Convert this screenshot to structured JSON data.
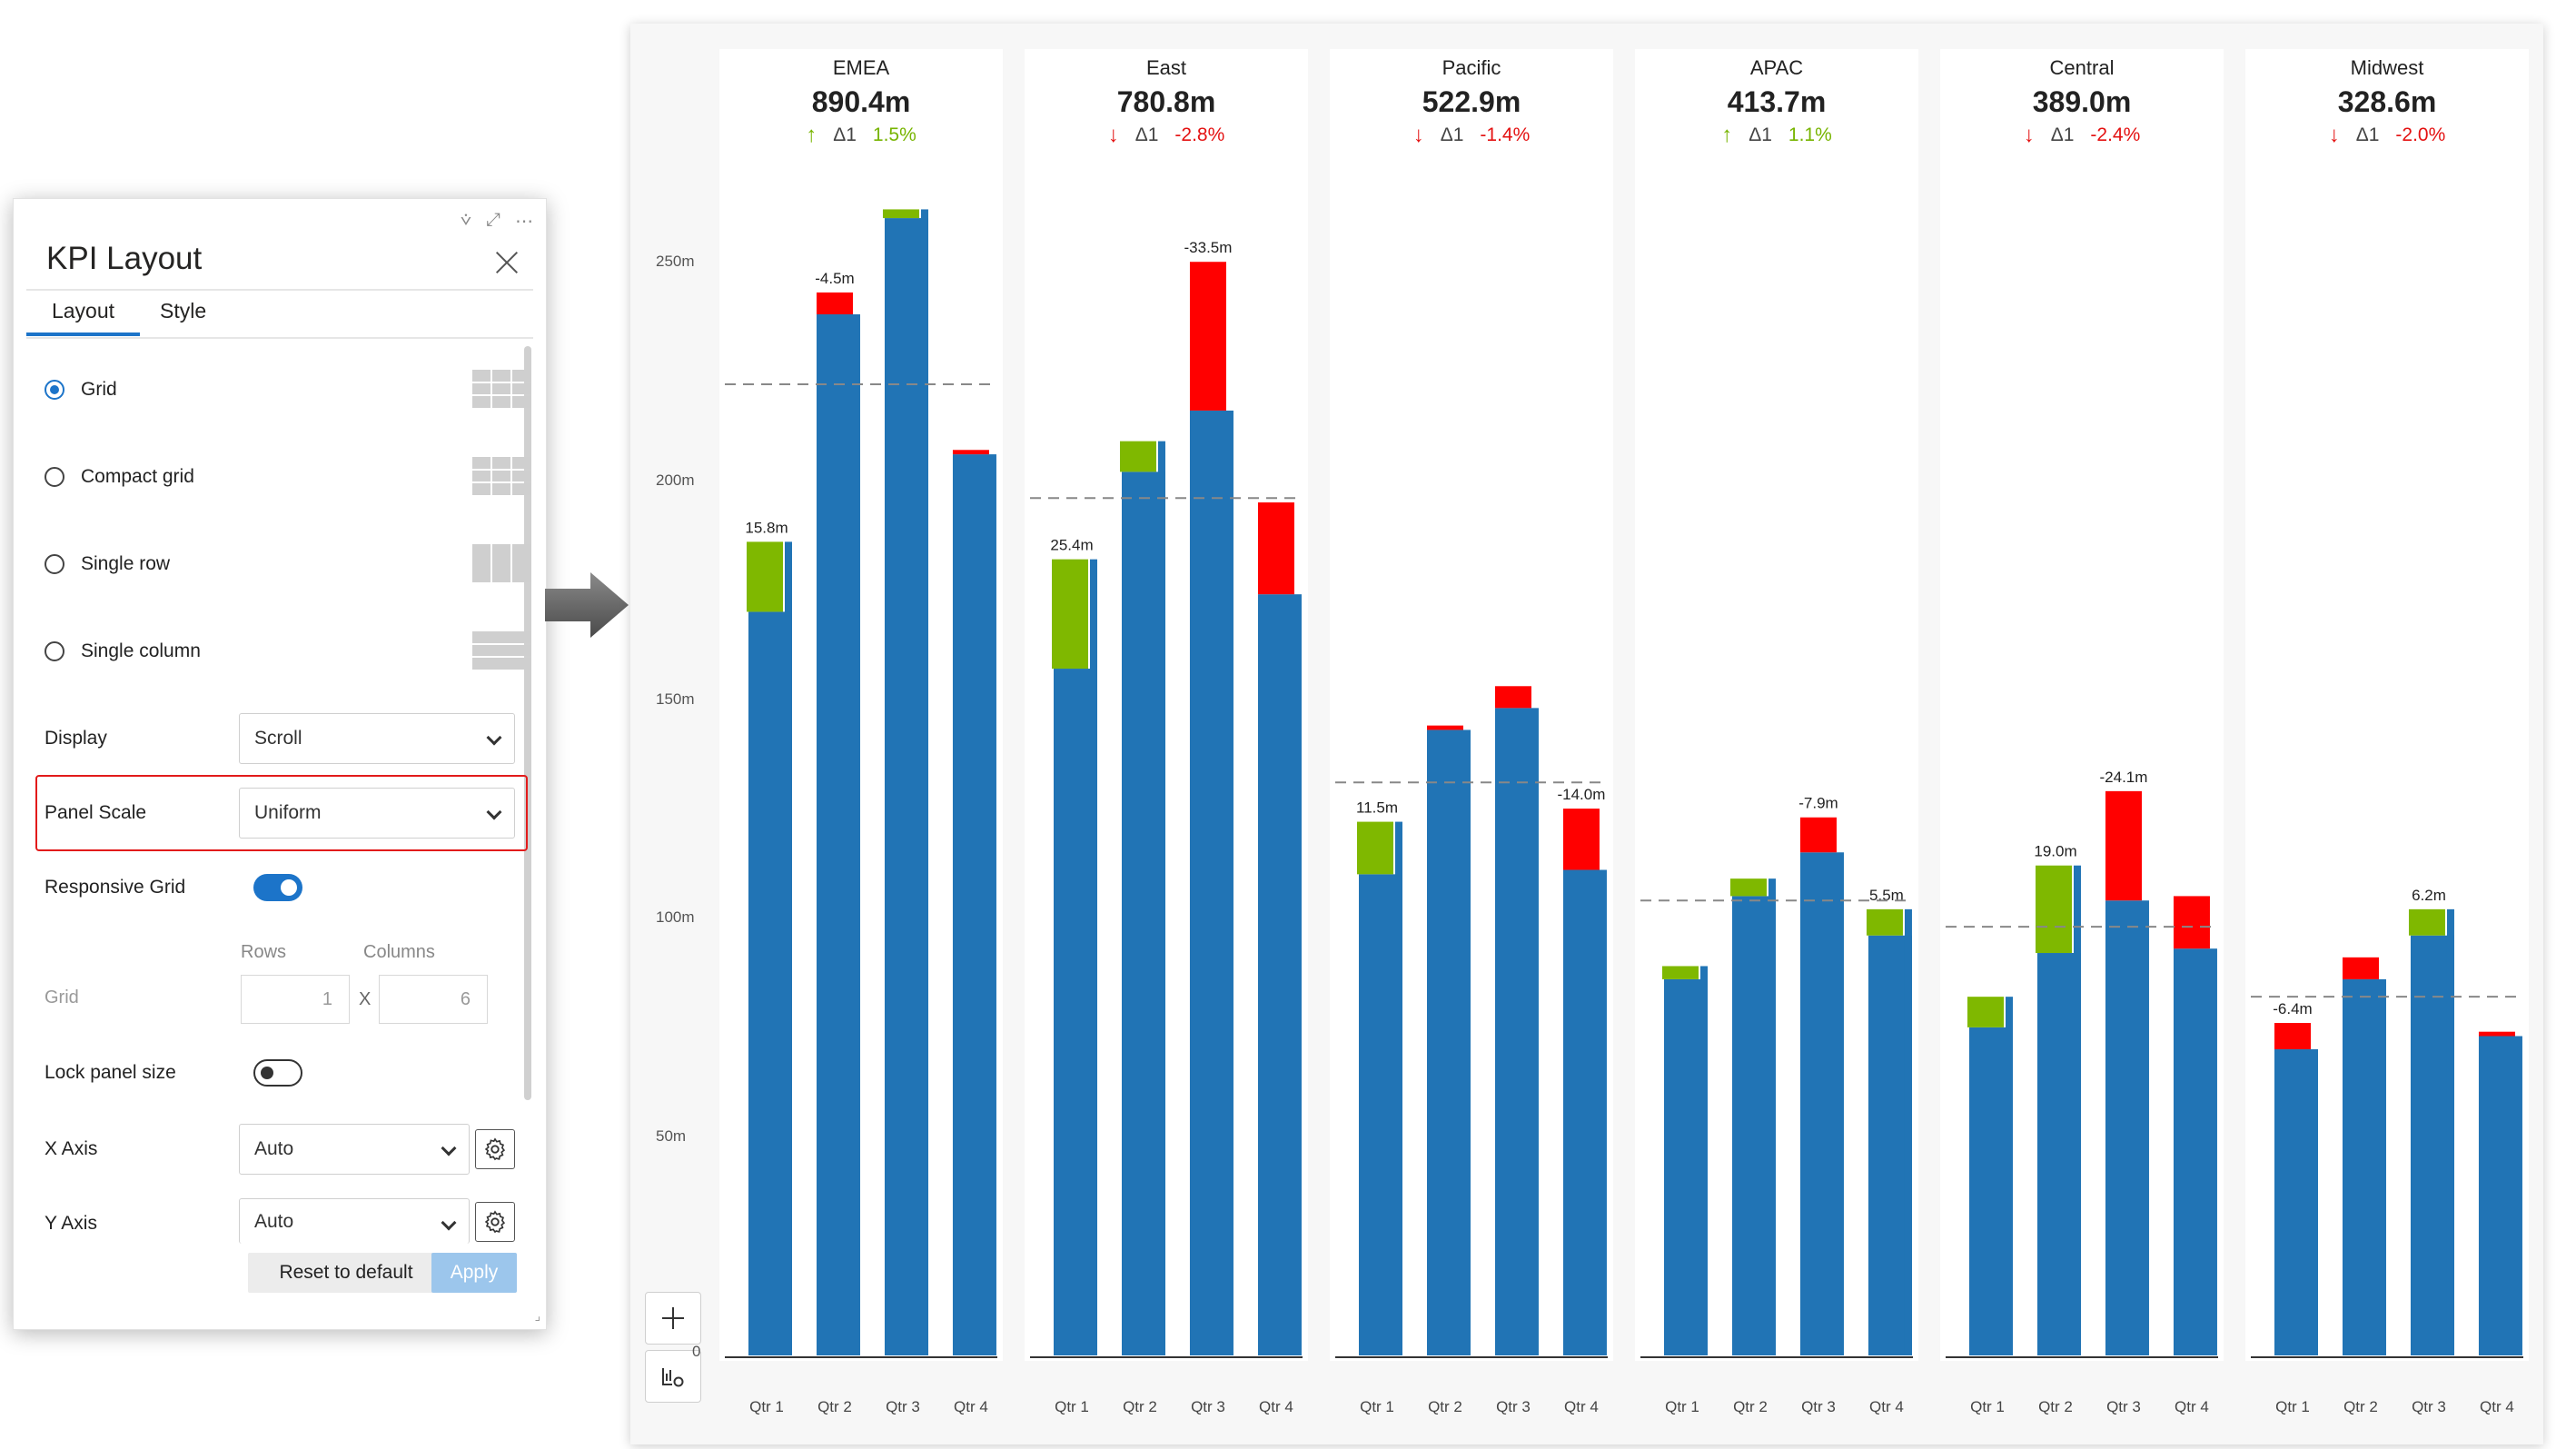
{
  "settings_panel": {
    "title": "KPI Layout",
    "tabs": [
      {
        "label": "Layout",
        "active": true
      },
      {
        "label": "Style",
        "active": false
      }
    ],
    "layout_options": [
      {
        "label": "Grid",
        "selected": true,
        "icon": "grid-layout-icon"
      },
      {
        "label": "Compact grid",
        "selected": false,
        "icon": "compact-grid-icon"
      },
      {
        "label": "Single row",
        "selected": false,
        "icon": "single-row-icon"
      },
      {
        "label": "Single column",
        "selected": false,
        "icon": "single-column-icon"
      }
    ],
    "display": {
      "label": "Display",
      "value": "Scroll"
    },
    "panel_scale": {
      "label": "Panel Scale",
      "value": "Uniform"
    },
    "responsive_grid": {
      "label": "Responsive Grid",
      "on": true
    },
    "grid": {
      "label": "Grid",
      "rows_label": "Rows",
      "columns_label": "Columns",
      "rows": "1",
      "columns": "6",
      "separator": "X"
    },
    "lock_panel_size": {
      "label": "Lock panel size",
      "on": false
    },
    "x_axis": {
      "label": "X Axis",
      "value": "Auto"
    },
    "y_axis": {
      "label": "Y Axis",
      "value": "Auto"
    },
    "reset_label": "Reset to default",
    "apply_label": "Apply"
  },
  "colors": {
    "bar": "#2174b5",
    "positive": "#7fb800",
    "negative": "#ff0000",
    "accent": "#1c74c9"
  },
  "dashboard": {
    "y_ticks": [
      "250m",
      "200m",
      "150m",
      "100m",
      "50m"
    ],
    "y_tick_values": [
      250,
      200,
      150,
      100,
      50
    ],
    "zero_label": "0"
  },
  "chart_data": [
    {
      "type": "bar",
      "title": "EMEA",
      "total": "890.4m",
      "delta_label": "Δ1",
      "delta": "1.5%",
      "direction": "up",
      "categories": [
        "Qtr 1",
        "Qtr 2",
        "Qtr 3",
        "Qtr 4"
      ],
      "values": [
        186,
        243,
        262,
        206
      ],
      "avg": 222,
      "variances": [
        {
          "bar": 0,
          "from": 170,
          "to": 186,
          "label": "15.8m"
        },
        {
          "bar": 1,
          "from": 238,
          "to": 243,
          "label": "-4.5m"
        },
        {
          "bar": 2,
          "from": 260,
          "to": 262,
          "label": ""
        },
        {
          "bar": 3,
          "from": 206,
          "to": 207,
          "label": ""
        }
      ],
      "ylim": [
        0,
        265
      ]
    },
    {
      "type": "bar",
      "title": "East",
      "total": "780.8m",
      "delta_label": "Δ1",
      "delta": "-2.8%",
      "direction": "down",
      "categories": [
        "Qtr 1",
        "Qtr 2",
        "Qtr 3",
        "Qtr 4"
      ],
      "values": [
        182,
        209,
        250,
        195
      ],
      "avg": 196,
      "variances": [
        {
          "bar": 0,
          "from": 157,
          "to": 182,
          "label": "25.4m"
        },
        {
          "bar": 1,
          "from": 202,
          "to": 209,
          "label": ""
        },
        {
          "bar": 2,
          "from": 216,
          "to": 250,
          "label": "-33.5m"
        },
        {
          "bar": 3,
          "from": 174,
          "to": 195,
          "label": ""
        }
      ],
      "ylim": [
        0,
        265
      ]
    },
    {
      "type": "bar",
      "title": "Pacific",
      "total": "522.9m",
      "delta_label": "Δ1",
      "delta": "-1.4%",
      "direction": "down",
      "categories": [
        "Qtr 1",
        "Qtr 2",
        "Qtr 3",
        "Qtr 4"
      ],
      "values": [
        122,
        144,
        153,
        125
      ],
      "avg": 131,
      "variances": [
        {
          "bar": 0,
          "from": 110,
          "to": 122,
          "label": "11.5m"
        },
        {
          "bar": 1,
          "from": 143,
          "to": 144,
          "label": ""
        },
        {
          "bar": 2,
          "from": 148,
          "to": 153,
          "label": ""
        },
        {
          "bar": 3,
          "from": 111,
          "to": 125,
          "label": "-14.0m"
        }
      ],
      "ylim": [
        0,
        265
      ]
    },
    {
      "type": "bar",
      "title": "APAC",
      "total": "413.7m",
      "delta_label": "Δ1",
      "delta": "1.1%",
      "direction": "up",
      "categories": [
        "Qtr 1",
        "Qtr 2",
        "Qtr 3",
        "Qtr 4"
      ],
      "values": [
        89,
        109,
        123,
        102
      ],
      "avg": 104,
      "variances": [
        {
          "bar": 0,
          "from": 89,
          "to": 86,
          "label": ""
        },
        {
          "bar": 1,
          "from": 105,
          "to": 109,
          "label": ""
        },
        {
          "bar": 2,
          "from": 115,
          "to": 123,
          "label": "-7.9m"
        },
        {
          "bar": 3,
          "from": 96,
          "to": 102,
          "label": "5.5m"
        }
      ],
      "ylim": [
        0,
        265
      ]
    },
    {
      "type": "bar",
      "title": "Central",
      "total": "389.0m",
      "delta_label": "Δ1",
      "delta": "-2.4%",
      "direction": "down",
      "categories": [
        "Qtr 1",
        "Qtr 2",
        "Qtr 3",
        "Qtr 4"
      ],
      "values": [
        82,
        112,
        129,
        105
      ],
      "avg": 98,
      "variances": [
        {
          "bar": 0,
          "from": 75,
          "to": 82,
          "label": ""
        },
        {
          "bar": 1,
          "from": 92,
          "to": 112,
          "label": "19.0m"
        },
        {
          "bar": 2,
          "from": 104,
          "to": 129,
          "label": "-24.1m"
        },
        {
          "bar": 3,
          "from": 93,
          "to": 105,
          "label": ""
        }
      ],
      "ylim": [
        0,
        265
      ]
    },
    {
      "type": "bar",
      "title": "Midwest",
      "total": "328.6m",
      "delta_label": "Δ1",
      "delta": "-2.0%",
      "direction": "down",
      "categories": [
        "Qtr 1",
        "Qtr 2",
        "Qtr 3",
        "Qtr 4"
      ],
      "values": [
        76,
        91,
        102,
        74
      ],
      "avg": 82,
      "variances": [
        {
          "bar": 0,
          "from": 70,
          "to": 76,
          "label": "-6.4m"
        },
        {
          "bar": 1,
          "from": 86,
          "to": 91,
          "label": ""
        },
        {
          "bar": 2,
          "from": 96,
          "to": 102,
          "label": "6.2m"
        },
        {
          "bar": 3,
          "from": 73,
          "to": 74,
          "label": ""
        }
      ],
      "ylim": [
        0,
        265
      ]
    }
  ]
}
